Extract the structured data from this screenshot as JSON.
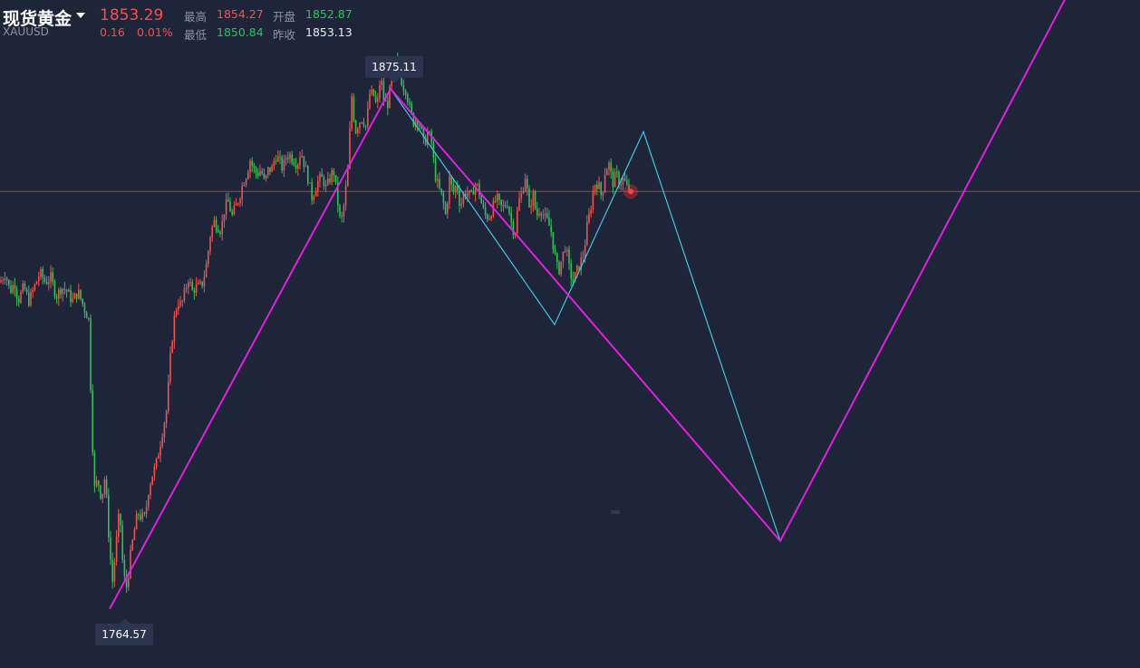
{
  "header": {
    "title": "现货黄金",
    "symbol": "XAUUSD",
    "price": "1853.29",
    "change": "0.16",
    "change_pct": "0.01%",
    "high_label": "最高",
    "high_value": "1854.27",
    "open_label": "开盘",
    "open_value": "1852.87",
    "low_label": "最低",
    "low_value": "1850.84",
    "prev_close_label": "昨收",
    "prev_close_value": "1853.13"
  },
  "chart_data": {
    "type": "candlestick",
    "title": "",
    "price_line": 1853.29,
    "max_label": "1875.11",
    "min_label": "1764.57",
    "ylim": [
      1752,
      1894
    ],
    "colors": {
      "up": "#f0524e",
      "down": "#2ec05a",
      "projection_primary": "#e020e0",
      "projection_secondary": "#3cc8e0",
      "price_line": "#c0504d"
    },
    "close_path": [
      [
        0,
        1834
      ],
      [
        6,
        1836
      ],
      [
        11,
        1832
      ],
      [
        16,
        1834
      ],
      [
        20,
        1830
      ],
      [
        26,
        1833
      ],
      [
        32,
        1830
      ],
      [
        38,
        1833
      ],
      [
        44,
        1836
      ],
      [
        50,
        1834
      ],
      [
        56,
        1835
      ],
      [
        62,
        1831
      ],
      [
        68,
        1833
      ],
      [
        74,
        1832
      ],
      [
        80,
        1830
      ],
      [
        86,
        1832
      ],
      [
        92,
        1829
      ],
      [
        98,
        1826
      ],
      [
        100,
        1812
      ],
      [
        102,
        1800
      ],
      [
        104,
        1790
      ],
      [
        108,
        1792
      ],
      [
        112,
        1788
      ],
      [
        116,
        1793
      ],
      [
        120,
        1780
      ],
      [
        124,
        1770
      ],
      [
        128,
        1778
      ],
      [
        132,
        1786
      ],
      [
        136,
        1772
      ],
      [
        140,
        1769
      ],
      [
        144,
        1776
      ],
      [
        148,
        1781
      ],
      [
        152,
        1785
      ],
      [
        156,
        1784
      ],
      [
        160,
        1784
      ],
      [
        164,
        1790
      ],
      [
        168,
        1793
      ],
      [
        172,
        1795
      ],
      [
        176,
        1799
      ],
      [
        180,
        1803
      ],
      [
        184,
        1807
      ],
      [
        188,
        1818
      ],
      [
        192,
        1826
      ],
      [
        196,
        1830
      ],
      [
        200,
        1829
      ],
      [
        204,
        1832
      ],
      [
        208,
        1835
      ],
      [
        212,
        1832
      ],
      [
        216,
        1833
      ],
      [
        220,
        1833
      ],
      [
        224,
        1834
      ],
      [
        228,
        1838
      ],
      [
        232,
        1844
      ],
      [
        236,
        1847
      ],
      [
        240,
        1846
      ],
      [
        244,
        1845
      ],
      [
        248,
        1850
      ],
      [
        252,
        1851
      ],
      [
        256,
        1848
      ],
      [
        260,
        1850
      ],
      [
        264,
        1852
      ],
      [
        268,
        1855
      ],
      [
        272,
        1857
      ],
      [
        276,
        1860
      ],
      [
        280,
        1858
      ],
      [
        284,
        1857
      ],
      [
        288,
        1858
      ],
      [
        292,
        1855
      ],
      [
        296,
        1858
      ],
      [
        300,
        1858
      ],
      [
        304,
        1861
      ],
      [
        308,
        1860
      ],
      [
        312,
        1858
      ],
      [
        316,
        1861
      ],
      [
        320,
        1861
      ],
      [
        324,
        1860
      ],
      [
        328,
        1859
      ],
      [
        332,
        1862
      ],
      [
        336,
        1859
      ],
      [
        340,
        1856
      ],
      [
        344,
        1852
      ],
      [
        348,
        1854
      ],
      [
        352,
        1856
      ],
      [
        356,
        1856
      ],
      [
        360,
        1854
      ],
      [
        364,
        1856
      ],
      [
        368,
        1858
      ],
      [
        372,
        1852
      ],
      [
        376,
        1846
      ],
      [
        380,
        1851
      ],
      [
        384,
        1858
      ],
      [
        388,
        1874
      ],
      [
        392,
        1866
      ],
      [
        396,
        1868
      ],
      [
        400,
        1869
      ],
      [
        404,
        1867
      ],
      [
        408,
        1874
      ],
      [
        412,
        1874
      ],
      [
        416,
        1871
      ],
      [
        420,
        1878
      ],
      [
        424,
        1872
      ],
      [
        428,
        1872
      ],
      [
        432,
        1877
      ],
      [
        436,
        1881
      ],
      [
        440,
        1880
      ],
      [
        444,
        1876
      ],
      [
        448,
        1875
      ],
      [
        452,
        1871
      ],
      [
        456,
        1868
      ],
      [
        460,
        1869
      ],
      [
        464,
        1867
      ],
      [
        468,
        1863
      ],
      [
        472,
        1866
      ],
      [
        476,
        1864
      ],
      [
        480,
        1857
      ],
      [
        484,
        1854
      ],
      [
        488,
        1852
      ],
      [
        492,
        1848
      ],
      [
        496,
        1856
      ],
      [
        500,
        1853
      ],
      [
        504,
        1855
      ],
      [
        508,
        1850
      ],
      [
        512,
        1853
      ],
      [
        516,
        1853
      ],
      [
        520,
        1852
      ],
      [
        524,
        1855
      ],
      [
        528,
        1854
      ],
      [
        532,
        1850
      ],
      [
        536,
        1848
      ],
      [
        540,
        1848
      ],
      [
        544,
        1850
      ],
      [
        548,
        1852
      ],
      [
        552,
        1850
      ],
      [
        556,
        1850
      ],
      [
        560,
        1851
      ],
      [
        564,
        1847
      ],
      [
        568,
        1844
      ],
      [
        572,
        1851
      ],
      [
        576,
        1853
      ],
      [
        580,
        1857
      ],
      [
        584,
        1849
      ],
      [
        588,
        1853
      ],
      [
        592,
        1848
      ],
      [
        596,
        1850
      ],
      [
        600,
        1848
      ],
      [
        604,
        1847
      ],
      [
        608,
        1845
      ],
      [
        612,
        1840
      ],
      [
        616,
        1836
      ],
      [
        620,
        1839
      ],
      [
        624,
        1842
      ],
      [
        628,
        1837
      ],
      [
        632,
        1834
      ],
      [
        636,
        1836
      ],
      [
        640,
        1838
      ],
      [
        644,
        1840
      ],
      [
        648,
        1846
      ],
      [
        652,
        1850
      ],
      [
        656,
        1855
      ],
      [
        660,
        1855
      ],
      [
        664,
        1852
      ],
      [
        668,
        1858
      ],
      [
        672,
        1859
      ],
      [
        676,
        1855
      ],
      [
        680,
        1857
      ],
      [
        684,
        1855
      ],
      [
        688,
        1856
      ],
      [
        692,
        1854
      ],
      [
        696,
        1853.3
      ]
    ],
    "pattern_primary": [
      [
        121,
        1764.57
      ],
      [
        431,
        1875.11
      ],
      [
        861,
        1779
      ],
      [
        1183,
        1897
      ]
    ],
    "pattern_secondary": [
      [
        431,
        1875.11
      ],
      [
        612,
        1825
      ],
      [
        710,
        1866
      ],
      [
        861,
        1779
      ]
    ]
  }
}
